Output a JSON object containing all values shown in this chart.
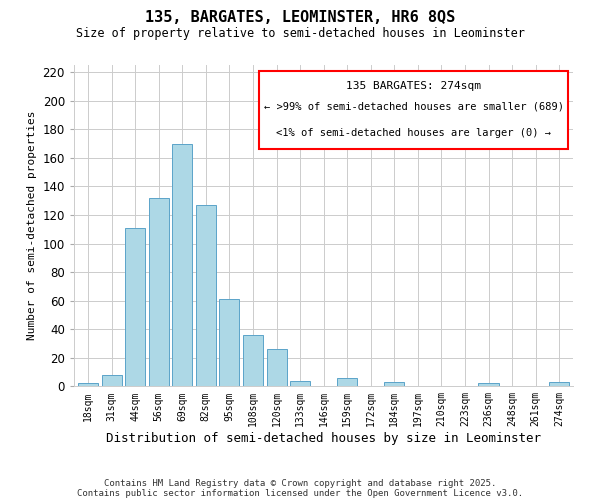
{
  "title": "135, BARGATES, LEOMINSTER, HR6 8QS",
  "subtitle": "Size of property relative to semi-detached houses in Leominster",
  "xlabel": "Distribution of semi-detached houses by size in Leominster",
  "ylabel": "Number of semi-detached properties",
  "bar_labels": [
    "18sqm",
    "31sqm",
    "44sqm",
    "56sqm",
    "69sqm",
    "82sqm",
    "95sqm",
    "108sqm",
    "120sqm",
    "133sqm",
    "146sqm",
    "159sqm",
    "172sqm",
    "184sqm",
    "197sqm",
    "210sqm",
    "223sqm",
    "236sqm",
    "248sqm",
    "261sqm",
    "274sqm"
  ],
  "bar_values": [
    2,
    8,
    111,
    132,
    170,
    127,
    61,
    36,
    26,
    4,
    0,
    6,
    0,
    3,
    0,
    0,
    0,
    2,
    0,
    0,
    3
  ],
  "bar_color": "#add8e6",
  "bar_edge_color": "#5ba3c9",
  "ylim": [
    0,
    225
  ],
  "yticks": [
    0,
    20,
    40,
    60,
    80,
    100,
    120,
    140,
    160,
    180,
    200,
    220
  ],
  "annotation_box_color": "#ff0000",
  "annotation_title": "135 BARGATES: 274sqm",
  "annotation_line1": "← >99% of semi-detached houses are smaller (689)",
  "annotation_line2": "<1% of semi-detached houses are larger (0) →",
  "footnote1": "Contains HM Land Registry data © Crown copyright and database right 2025.",
  "footnote2": "Contains public sector information licensed under the Open Government Licence v3.0.",
  "background_color": "#ffffff",
  "grid_color": "#cccccc"
}
